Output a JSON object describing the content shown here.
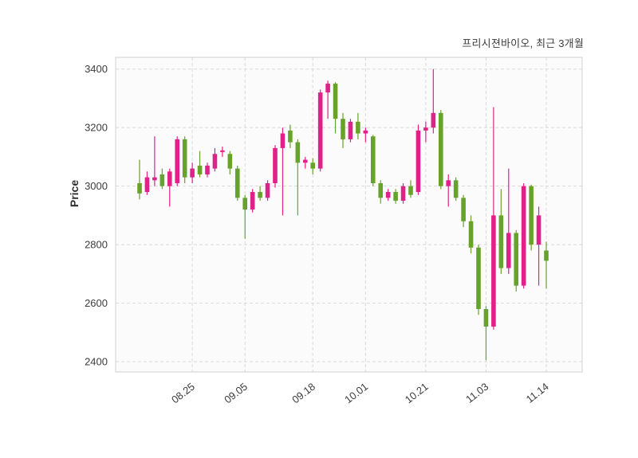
{
  "chart_data": {
    "type": "candlestick",
    "title": "프리시젼바이오, 최근 3개월",
    "ylabel": "Price",
    "ylim": [
      2365,
      3440
    ],
    "yticks": [
      2400,
      2600,
      2800,
      3000,
      3200,
      3400
    ],
    "xticks": [
      {
        "index": 7,
        "label": "08.25"
      },
      {
        "index": 14,
        "label": "09.05"
      },
      {
        "index": 23,
        "label": "09.18"
      },
      {
        "index": 30,
        "label": "10.01"
      },
      {
        "index": 38,
        "label": "10.21"
      },
      {
        "index": 46,
        "label": "11.03"
      },
      {
        "index": 54,
        "label": "11.14"
      }
    ],
    "grid": "dashed",
    "legend_position": "none",
    "colors": {
      "up": "#e0218a",
      "down": "#67a22c",
      "grid": "#d9d9d9",
      "frame": "#d0d0d0",
      "tick_text": "#3c3c3c",
      "plot_bg": "#fbfbfb"
    },
    "ohlc_columns": [
      "open",
      "high",
      "low",
      "close"
    ],
    "ohlc": [
      [
        3010,
        3090,
        2955,
        2975
      ],
      [
        2980,
        3050,
        2970,
        3030
      ],
      [
        3020,
        3170,
        3000,
        3030
      ],
      [
        3040,
        3060,
        2990,
        3000
      ],
      [
        3000,
        3060,
        2930,
        3050
      ],
      [
        3010,
        3170,
        3000,
        3160
      ],
      [
        3160,
        3170,
        3010,
        3030
      ],
      [
        3030,
        3080,
        3010,
        3060
      ],
      [
        3070,
        3120,
        3030,
        3040
      ],
      [
        3040,
        3080,
        3030,
        3070
      ],
      [
        3060,
        3130,
        3050,
        3110
      ],
      [
        3118,
        3135,
        3100,
        3122
      ],
      [
        3110,
        3120,
        3040,
        3060
      ],
      [
        3060,
        3070,
        2950,
        2960
      ],
      [
        2960,
        2970,
        2820,
        2920
      ],
      [
        2920,
        2990,
        2910,
        2980
      ],
      [
        2980,
        3000,
        2950,
        2960
      ],
      [
        2960,
        3020,
        2950,
        3010
      ],
      [
        3010,
        3140,
        2995,
        3130
      ],
      [
        3130,
        3200,
        2900,
        3180
      ],
      [
        3190,
        3210,
        3130,
        3150
      ],
      [
        3150,
        3160,
        2900,
        3080
      ],
      [
        3080,
        3100,
        3060,
        3090
      ],
      [
        3080,
        3095,
        3040,
        3060
      ],
      [
        3060,
        3330,
        3050,
        3320
      ],
      [
        3320,
        3360,
        3230,
        3350
      ],
      [
        3350,
        3355,
        3180,
        3230
      ],
      [
        3230,
        3250,
        3130,
        3160
      ],
      [
        3160,
        3230,
        3150,
        3220
      ],
      [
        3220,
        3250,
        3160,
        3180
      ],
      [
        3180,
        3200,
        3150,
        3190
      ],
      [
        3170,
        3175,
        3000,
        3010
      ],
      [
        3010,
        3020,
        2940,
        2960
      ],
      [
        2960,
        2990,
        2950,
        2980
      ],
      [
        2980,
        2990,
        2940,
        2950
      ],
      [
        2950,
        3010,
        2940,
        3000
      ],
      [
        3000,
        3020,
        2960,
        2970
      ],
      [
        2980,
        3210,
        2970,
        3190
      ],
      [
        3190,
        3220,
        3150,
        3200
      ],
      [
        3200,
        3400,
        3180,
        3250
      ],
      [
        3250,
        3260,
        2990,
        3000
      ],
      [
        3000,
        3040,
        2930,
        3020
      ],
      [
        3020,
        3030,
        2950,
        2960
      ],
      [
        2960,
        2970,
        2860,
        2880
      ],
      [
        2880,
        2900,
        2770,
        2790
      ],
      [
        2790,
        2800,
        2560,
        2580
      ],
      [
        2580,
        2590,
        2405,
        2520
      ],
      [
        2520,
        3270,
        2510,
        2900
      ],
      [
        2900,
        2990,
        2700,
        2720
      ],
      [
        2720,
        3060,
        2700,
        2840
      ],
      [
        2840,
        2850,
        2640,
        2660
      ],
      [
        2660,
        3010,
        2650,
        3000
      ],
      [
        3000,
        3005,
        2780,
        2800
      ],
      [
        2800,
        2930,
        2660,
        2900
      ],
      [
        2780,
        2810,
        2650,
        2745
      ]
    ]
  }
}
